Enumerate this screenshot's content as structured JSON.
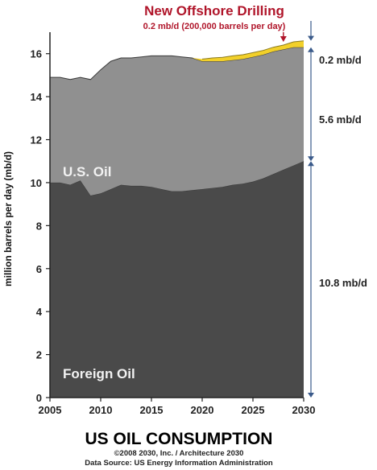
{
  "chart_data": {
    "type": "area",
    "title": "US OIL CONSUMPTION",
    "credit_line_1": "©2008 2030, Inc. / Architecture 2030",
    "credit_line_2": "Data Source: US Energy Information Administration",
    "ylabel": "million barrels per day (mb/d)",
    "xlim": [
      2005,
      2030
    ],
    "ylim": [
      0,
      17
    ],
    "x_ticks": [
      "2005",
      "2010",
      "2015",
      "2020",
      "2025",
      "2030"
    ],
    "y_ticks": [
      "0",
      "2",
      "4",
      "6",
      "8",
      "10",
      "12",
      "14",
      "16"
    ],
    "x": [
      2005,
      2006,
      2007,
      2008,
      2009,
      2010,
      2011,
      2012,
      2013,
      2014,
      2015,
      2016,
      2017,
      2018,
      2019,
      2020,
      2021,
      2022,
      2023,
      2024,
      2025,
      2026,
      2027,
      2028,
      2029,
      2030
    ],
    "series": [
      {
        "name": "Foreign Oil",
        "values": [
          10.0,
          10.0,
          9.9,
          10.1,
          9.4,
          9.5,
          9.7,
          9.9,
          9.85,
          9.85,
          9.8,
          9.7,
          9.6,
          9.6,
          9.65,
          9.7,
          9.75,
          9.8,
          9.9,
          9.95,
          10.05,
          10.2,
          10.4,
          10.6,
          10.8,
          11.0
        ],
        "color": "#4a4a4a"
      },
      {
        "name": "U.S. Oil",
        "values": [
          4.9,
          4.9,
          4.9,
          4.8,
          5.4,
          5.75,
          5.95,
          5.9,
          5.95,
          6.0,
          6.1,
          6.2,
          6.3,
          6.25,
          6.15,
          5.95,
          5.9,
          5.85,
          5.8,
          5.8,
          5.8,
          5.75,
          5.7,
          5.6,
          5.5,
          5.3
        ],
        "color": "#909090"
      },
      {
        "name": "New Offshore Drilling",
        "values": [
          0,
          0,
          0,
          0,
          0,
          0,
          0,
          0,
          0,
          0,
          0,
          0,
          0,
          0,
          0.0,
          0.1,
          0.15,
          0.18,
          0.2,
          0.2,
          0.2,
          0.2,
          0.2,
          0.2,
          0.25,
          0.3
        ],
        "color": "#f2d02a"
      }
    ],
    "right_labels": [
      "0.2 mb/d",
      "5.6 mb/d",
      "10.8 mb/d"
    ],
    "callout_title": "New Offshore Drilling",
    "callout_subtitle": "0.2 mb/d (200,000 barrels per day)",
    "colors": {
      "axis": "#222222",
      "bracket": "#3a5a8a",
      "callout": "#b0152a"
    },
    "grid": false,
    "legend": "labels inside areas"
  }
}
